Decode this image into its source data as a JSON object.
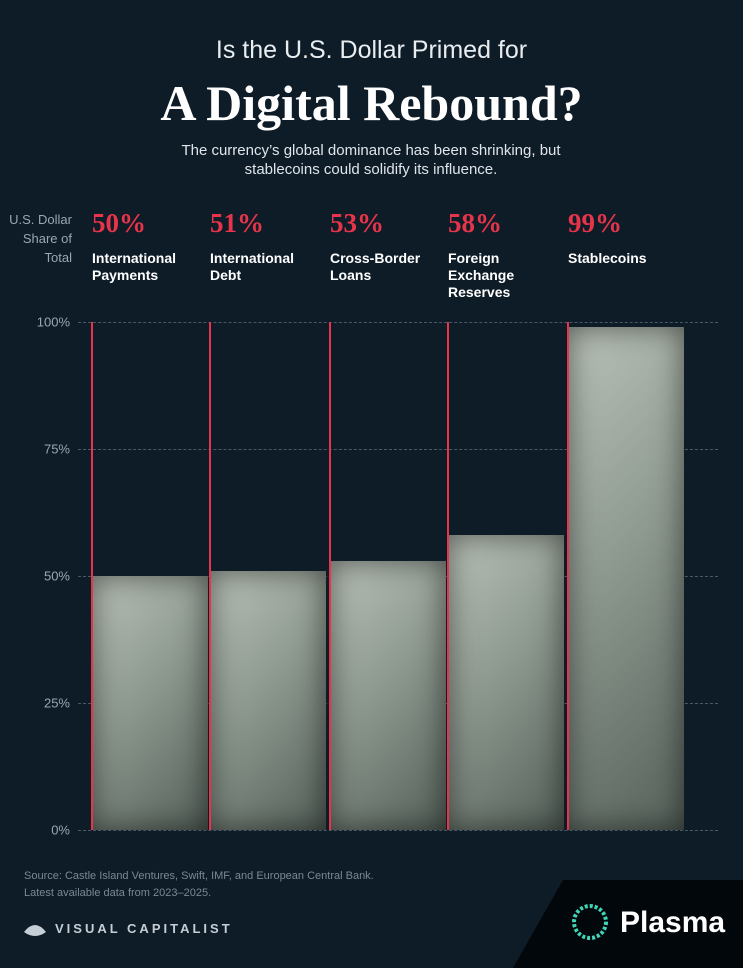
{
  "chart_data": {
    "type": "bar",
    "pretitle": "Is the U.S. Dollar Primed for",
    "title": "A Digital Rebound?",
    "subtitle": "The currency’s global dominance has been shrinking, but stablecoins could solidify its influence.",
    "ylabel": "U.S. Dollar Share of Total",
    "categories": [
      "International Payments",
      "International Debt",
      "Cross-Border Loans",
      "Foreign Exchange Reserves",
      "Stablecoins"
    ],
    "values": [
      50,
      51,
      53,
      58,
      99
    ],
    "value_labels": [
      "50%",
      "51%",
      "53%",
      "58%",
      "99%"
    ],
    "color": "#b9c2b8",
    "accent_color": "#e8344a",
    "ylim": [
      0,
      100
    ],
    "yticks": [
      {
        "value": 0,
        "label": "0%"
      },
      {
        "value": 25,
        "label": "25%"
      },
      {
        "value": 50,
        "label": "50%"
      },
      {
        "value": 75,
        "label": "75%"
      },
      {
        "value": 100,
        "label": "100%"
      }
    ],
    "grid": true,
    "source": "Source: Castle Island Ventures, Swift, IMF, and European Central Bank.",
    "note": "Latest available data from 2023–2025.",
    "publisher": "VISUAL CAPITALIST",
    "sponsor": "Plasma"
  }
}
